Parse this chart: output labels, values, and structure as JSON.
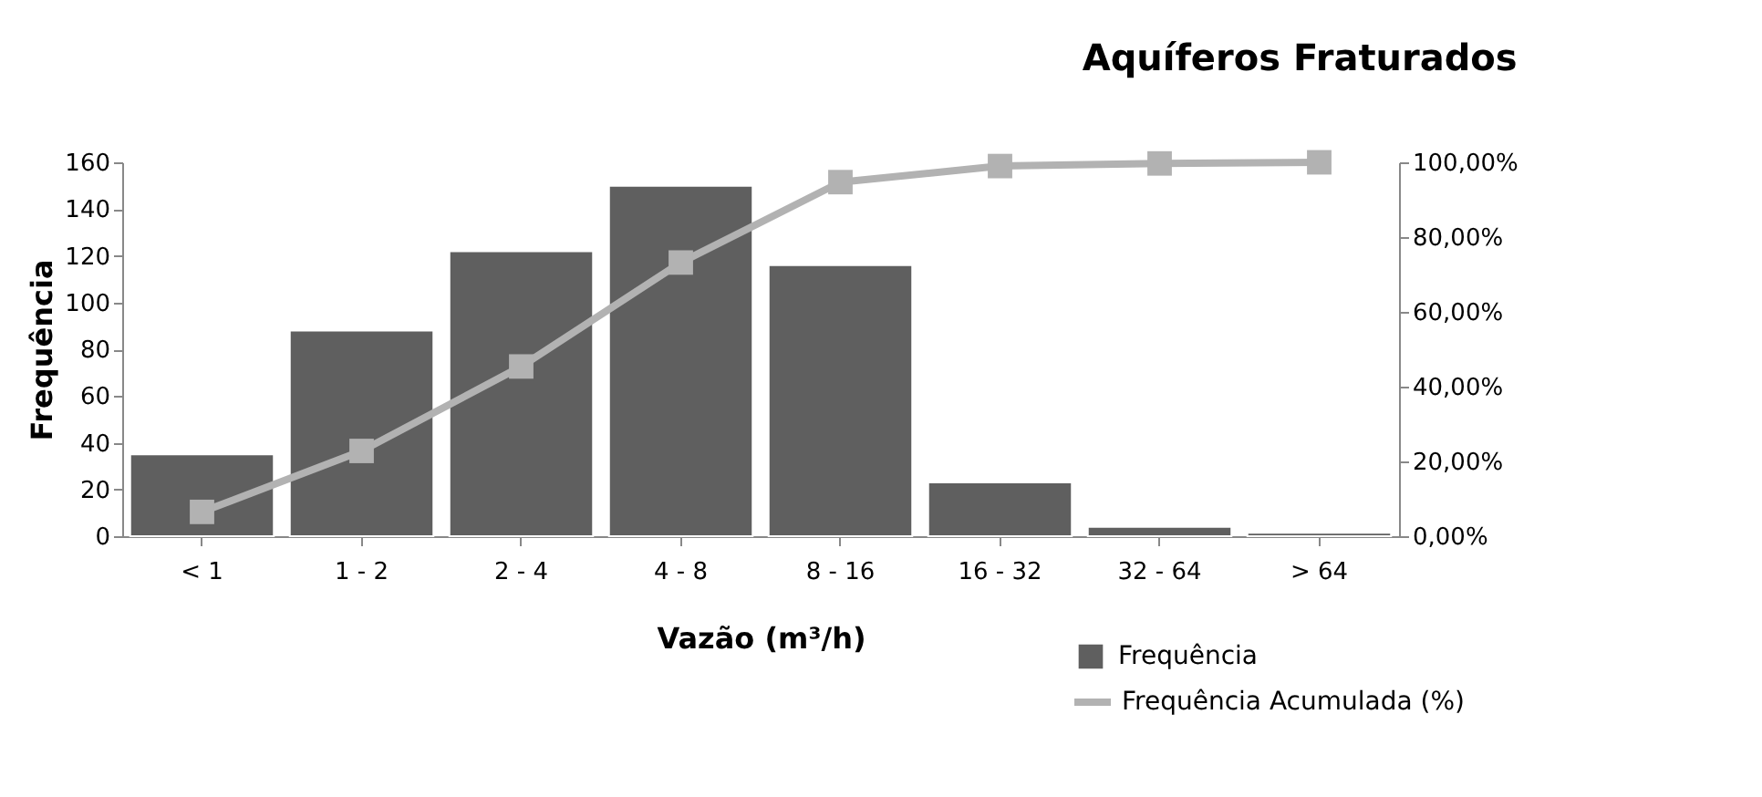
{
  "chart_data": {
    "type": "bar",
    "title": "Aquíferos Fraturados",
    "xlabel": "Vazão (m³/h)",
    "ylabel": "Frequência",
    "categories": [
      "< 1",
      "1 - 2",
      "2 - 4",
      "4 - 8",
      "8 - 16",
      "16 - 32",
      "32 - 64",
      "> 64"
    ],
    "series": [
      {
        "name": "Frequência",
        "color": "#5f5f5f",
        "values": [
          35,
          88,
          122,
          150,
          116,
          23,
          4,
          1.5
        ]
      },
      {
        "name": "Frequência Acumulada (%)",
        "type": "line",
        "axis": "y2",
        "color": "#b2b2b2",
        "values": [
          6.5,
          22.8,
          45.4,
          73.2,
          94.7,
          99.0,
          99.7,
          100
        ]
      }
    ],
    "ylim": [
      0,
      160
    ],
    "yticks": [
      0,
      20,
      40,
      60,
      80,
      100,
      120,
      140,
      160
    ],
    "y2lim": [
      0,
      100
    ],
    "y2ticks": [
      {
        "value": 0,
        "label": "0,00%"
      },
      {
        "value": 20,
        "label": "20,00%"
      },
      {
        "value": 40,
        "label": "40,00%"
      },
      {
        "value": 60,
        "label": "60,00%"
      },
      {
        "value": 80,
        "label": "80,00%"
      },
      {
        "value": 100,
        "label": "100,00%"
      }
    ],
    "marker": "square",
    "line_style": "solid",
    "grid": false,
    "legend": "bottom right"
  }
}
